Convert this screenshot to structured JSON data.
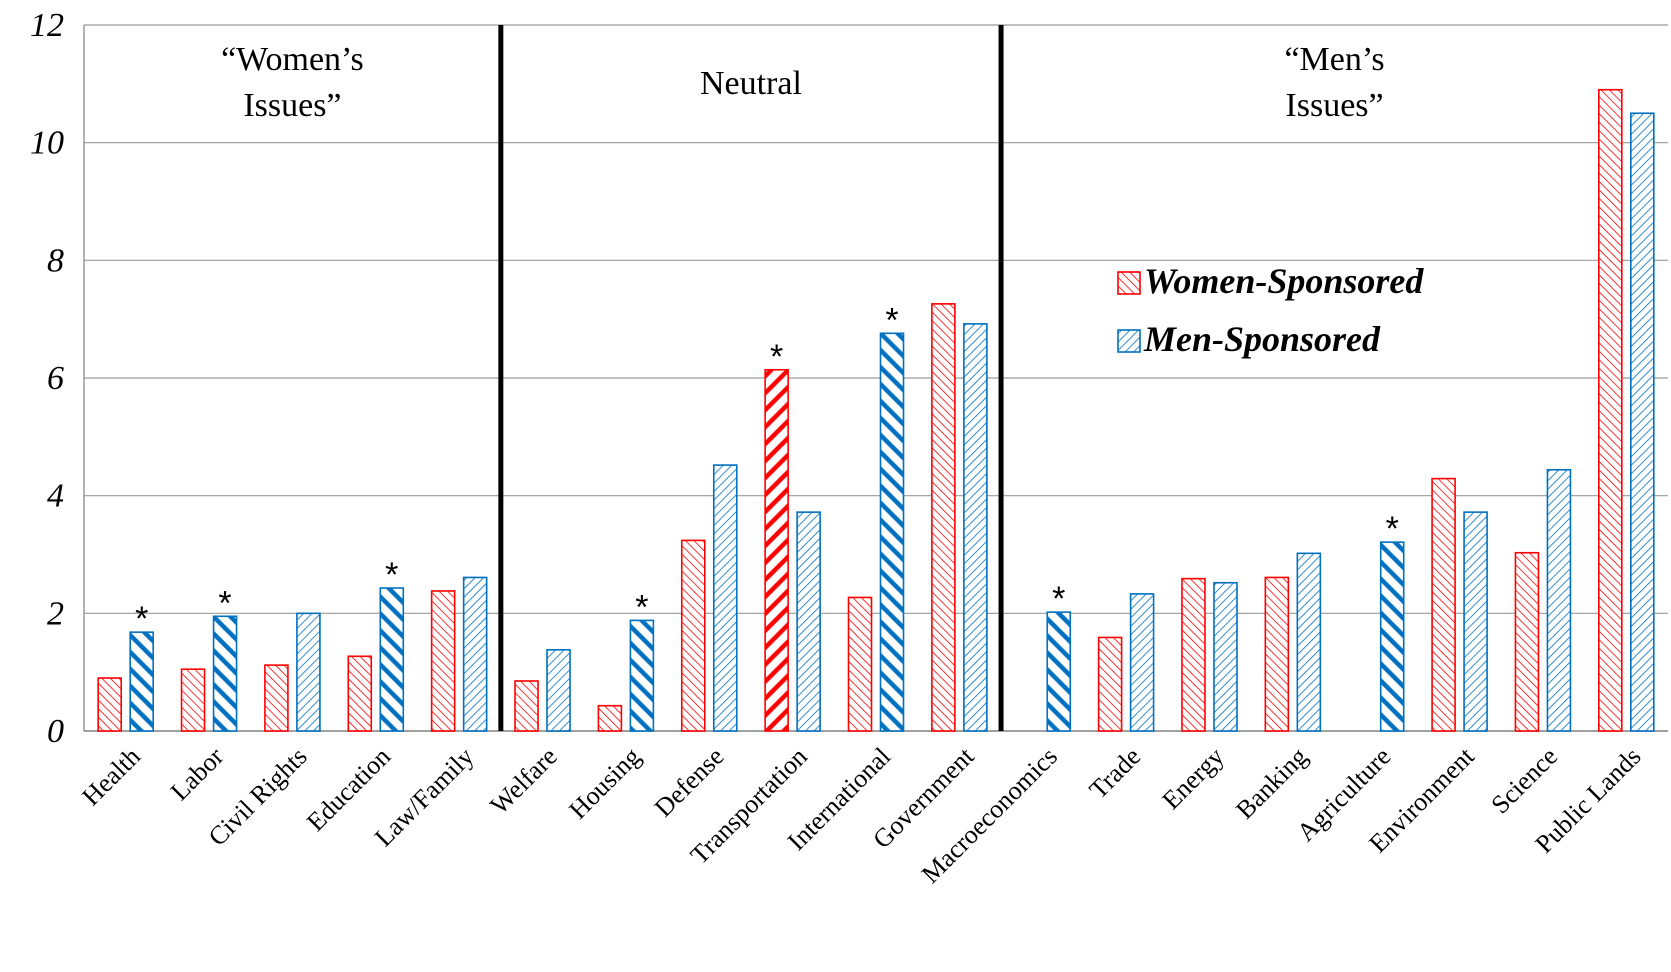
{
  "chart_data": {
    "type": "bar",
    "ylim": [
      0,
      12
    ],
    "yticks": [
      "0",
      "2",
      "4",
      "6",
      "8",
      "10",
      "12"
    ],
    "grid": true,
    "legend_position": "right-center",
    "categories": [
      "Health",
      "Labor",
      "Civil Rights",
      "Education",
      "Law/Family",
      "Welfare",
      "Housing",
      "Defense",
      "Transportation",
      "International",
      "Government",
      "Macroeconomics",
      "Trade",
      "Energy",
      "Banking",
      "Agriculture",
      "Environment",
      "Science",
      "Public Lands"
    ],
    "series": [
      {
        "name": "Women-Sponsored",
        "color": "#ff0000",
        "values": [
          0.9,
          1.05,
          1.12,
          1.27,
          2.38,
          0.85,
          0.43,
          3.24,
          6.14,
          2.27,
          7.26,
          0.0,
          1.59,
          2.59,
          2.61,
          0.0,
          4.29,
          3.03,
          10.9
        ]
      },
      {
        "name": "Men-Sponsored",
        "color": "#0070c0",
        "values": [
          1.68,
          1.95,
          2.0,
          2.43,
          2.61,
          1.38,
          1.88,
          4.52,
          3.72,
          6.76,
          6.92,
          2.02,
          2.33,
          2.52,
          3.02,
          3.21,
          3.72,
          4.44,
          10.5
        ]
      }
    ],
    "significant": [
      {
        "category": "Health",
        "series": "Men-Sponsored"
      },
      {
        "category": "Labor",
        "series": "Men-Sponsored"
      },
      {
        "category": "Education",
        "series": "Men-Sponsored"
      },
      {
        "category": "Housing",
        "series": "Men-Sponsored"
      },
      {
        "category": "Transportation",
        "series": "Women-Sponsored"
      },
      {
        "category": "International",
        "series": "Men-Sponsored"
      },
      {
        "category": "Macroeconomics",
        "series": "Men-Sponsored"
      },
      {
        "category": "Agriculture",
        "series": "Men-Sponsored"
      }
    ],
    "significance_marker": "*",
    "groups": [
      {
        "lines": [
          "“Women’s",
          "Issues”"
        ],
        "start": 0,
        "end": 4
      },
      {
        "lines": [
          "Neutral"
        ],
        "start": 5,
        "end": 10
      },
      {
        "lines": [
          "“Men’s",
          "Issues”"
        ],
        "start": 11,
        "end": 18
      }
    ]
  }
}
